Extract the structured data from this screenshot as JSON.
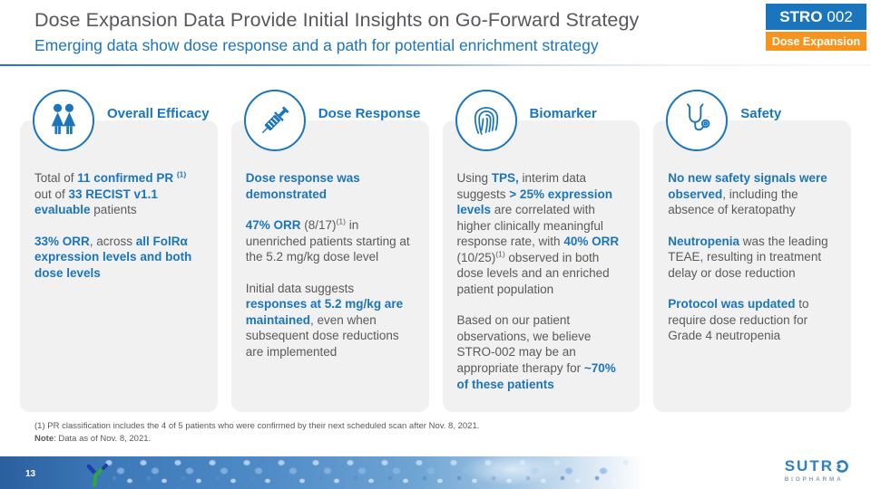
{
  "slide": {
    "header": {
      "title": "Dose Expansion Data Provide Initial Insights on Go-Forward Strategy",
      "subtitle": "Emerging data show dose response and a path for potential enrichment strategy",
      "badge": {
        "product": "STRO",
        "code": "002",
        "tag": "Dose Expansion"
      }
    },
    "columns": [
      {
        "title": "Overall Efficacy",
        "icon": "two-women-icon",
        "paragraphs": [
          [
            {
              "t": "Total of "
            },
            {
              "t": "11 confirmed PR ",
              "b": true
            },
            {
              "t": "(1)",
              "b": true,
              "sup": true
            },
            {
              "t": " out of "
            },
            {
              "t": "33 RECIST v1.1 evaluable",
              "b": true
            },
            {
              "t": " patients"
            }
          ],
          [
            {
              "t": "33% ORR",
              "b": true
            },
            {
              "t": ", across "
            },
            {
              "t": "all FolRα expression levels and both dose levels",
              "b": true
            }
          ]
        ]
      },
      {
        "title": "Dose Response",
        "icon": "syringe-icon",
        "paragraphs": [
          [
            {
              "t": "Dose response was demonstrated",
              "b": true
            }
          ],
          [
            {
              "t": "47% ORR",
              "b": true
            },
            {
              "t": " (8/17)"
            },
            {
              "t": "(1)",
              "sup": true
            },
            {
              "t": " in unenriched patients starting at the 5.2 mg/kg dose level"
            }
          ],
          [
            {
              "t": "Initial data suggests "
            },
            {
              "t": "responses at 5.2 mg/kg are maintained",
              "b": true
            },
            {
              "t": ", even when subsequent dose reductions are implemented"
            }
          ]
        ]
      },
      {
        "title": "Biomarker",
        "icon": "fingerprint-icon",
        "paragraphs": [
          [
            {
              "t": "Using "
            },
            {
              "t": "TPS,",
              "b": true
            },
            {
              "t": " interim data suggests "
            },
            {
              "t": "> 25% expression levels",
              "b": true
            },
            {
              "t": " are correlated with higher clinically meaningful response rate, with "
            },
            {
              "t": "40% ORR",
              "b": true
            },
            {
              "t": " (10/25)"
            },
            {
              "t": "(1)",
              "sup": true
            },
            {
              "t": " observed in both dose levels and an enriched patient population"
            }
          ],
          [
            {
              "t": "Based on our patient observations, we believe STRO-002 may be an appropriate therapy for "
            },
            {
              "t": "~70% of these patients",
              "b": true
            }
          ]
        ]
      },
      {
        "title": "Safety",
        "icon": "stethoscope-icon",
        "paragraphs": [
          [
            {
              "t": "No new safety signals were observed",
              "b": true
            },
            {
              "t": ", including the absence of keratopathy"
            }
          ],
          [
            {
              "t": "Neutropenia",
              "b": true
            },
            {
              "t": " was the leading TEAE, resulting in treatment delay or dose reduction"
            }
          ],
          [
            {
              "t": "Protocol was updated",
              "b": true
            },
            {
              "t": " to require dose reduction for Grade 4 neutropenia"
            }
          ]
        ]
      }
    ],
    "footnotes": {
      "line1": "(1) PR classification includes the 4 of 5 patients who were confirmed by their next scheduled scan after Nov. 8, 2021.",
      "note_label": "Note",
      "note_text": ": Data as of Nov. 8, 2021."
    },
    "footer": {
      "page_number": "13",
      "logo": {
        "prefix": "SUTR",
        "sub": "BIOPHARMA"
      }
    },
    "colors": {
      "accent_blue": "#1B75BC",
      "orange": "#F7941E",
      "title_gray": "#57585B",
      "body_gray": "#595A5C",
      "card_bg": "#F1F1F2"
    }
  }
}
